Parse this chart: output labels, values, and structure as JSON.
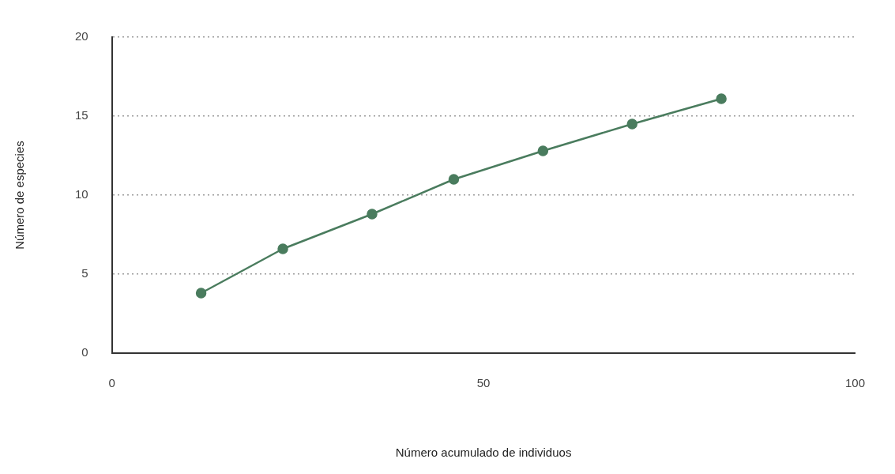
{
  "chart_data": {
    "type": "line",
    "xlabel": "Número acumulado de individuos",
    "ylabel": "Número de especies",
    "x": [
      12,
      23,
      35,
      46,
      58,
      70,
      82
    ],
    "values": [
      3.8,
      6.6,
      8.8,
      11.0,
      12.8,
      14.5,
      16.1
    ],
    "color": "#4a7c5e",
    "marker": "circle",
    "line_style": "solid",
    "xlim": [
      0,
      100
    ],
    "xticks": [
      0,
      50,
      100
    ],
    "ylim": [
      0,
      20
    ],
    "yticks": [
      0,
      5,
      10,
      15,
      20
    ],
    "grid": "y",
    "legend": false
  }
}
